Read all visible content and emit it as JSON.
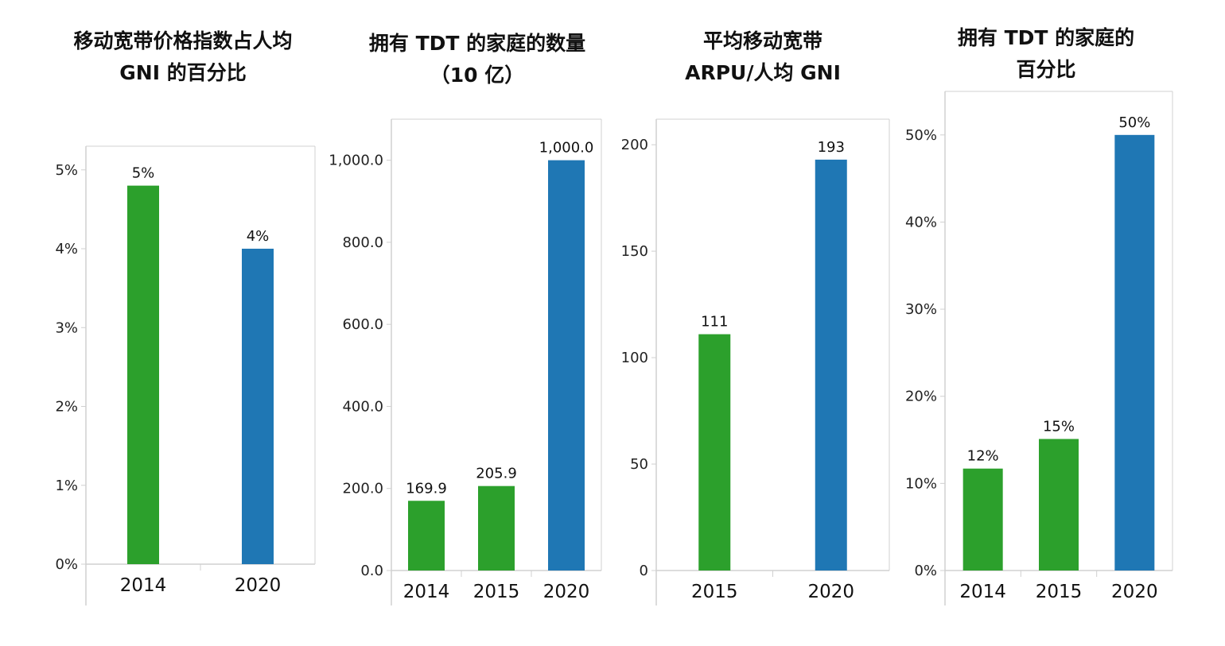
{
  "colors": {
    "green": "#2ca02c",
    "blue": "#1f77b4",
    "frame": "#d0d0d0"
  },
  "chart_data": [
    {
      "type": "bar",
      "title_lines": [
        "移动宽带价格指数占人均",
        "GNI 的百分比"
      ],
      "categories": [
        "2014",
        "2020"
      ],
      "values": [
        4.8,
        4.0
      ],
      "data_labels": [
        "5%",
        "4%"
      ],
      "bar_colors": [
        "green",
        "blue"
      ],
      "yticks": [
        0,
        1,
        2,
        3,
        4,
        5
      ],
      "ytick_labels": [
        "0%",
        "1%",
        "2%",
        "3%",
        "4%",
        "5%"
      ],
      "ylim": [
        0,
        5.3
      ],
      "grid": false
    },
    {
      "type": "bar",
      "title_lines": [
        "拥有 TDT 的家庭的数量",
        "（10 亿）"
      ],
      "categories": [
        "2014",
        "2015",
        "2020"
      ],
      "values": [
        169.9,
        205.9,
        1000.0
      ],
      "data_labels": [
        "169.9",
        "205.9",
        "1,000.0"
      ],
      "bar_colors": [
        "green",
        "green",
        "blue"
      ],
      "yticks": [
        0,
        200,
        400,
        600,
        800,
        1000
      ],
      "ytick_labels": [
        "0.0",
        "200.0",
        "400.0",
        "600.0",
        "800.0",
        "1,000.0"
      ],
      "ylim": [
        0,
        1100
      ],
      "grid": false
    },
    {
      "type": "bar",
      "title_lines": [
        "平均移动宽带",
        "ARPU/人均 GNI"
      ],
      "categories": [
        "2015",
        "2020"
      ],
      "values": [
        111,
        193
      ],
      "data_labels": [
        "111",
        "193"
      ],
      "bar_colors": [
        "green",
        "blue"
      ],
      "yticks": [
        0,
        50,
        100,
        150,
        200
      ],
      "ytick_labels": [
        "0",
        "50",
        "100",
        "150",
        "200"
      ],
      "ylim": [
        0,
        212
      ],
      "grid": false
    },
    {
      "type": "bar",
      "title_lines": [
        "拥有 TDT 的家庭的",
        "百分比"
      ],
      "categories": [
        "2014",
        "2015",
        "2020"
      ],
      "values": [
        11.7,
        15.1,
        50.0
      ],
      "data_labels": [
        "12%",
        "15%",
        "50%"
      ],
      "bar_colors": [
        "green",
        "green",
        "blue"
      ],
      "yticks": [
        0,
        10,
        20,
        30,
        40,
        50
      ],
      "ytick_labels": [
        "0%",
        "10%",
        "20%",
        "30%",
        "40%",
        "50%"
      ],
      "ylim": [
        0,
        55
      ],
      "grid": false
    }
  ]
}
